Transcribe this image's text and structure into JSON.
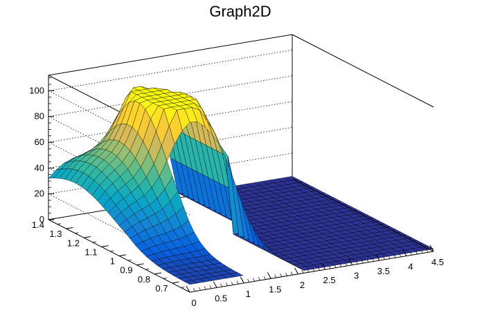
{
  "chart_data": {
    "type": "surface",
    "title": "Graph2D",
    "xlabel": "",
    "ylabel": "",
    "zlabel": "",
    "xlim": [
      0,
      4.5
    ],
    "ylim": [
      0.6,
      1.4
    ],
    "zlim": [
      0,
      112
    ],
    "x_ticks": [
      "0",
      "0.5",
      "1",
      "1.5",
      "2",
      "2.5",
      "3",
      "3.5",
      "4",
      "4.5"
    ],
    "y_ticks": [
      "0.7",
      "0.8",
      "0.9",
      "1",
      "1.1",
      "1.2",
      "1.3",
      "1.4"
    ],
    "z_ticks": [
      "0",
      "20",
      "40",
      "60",
      "80",
      "100"
    ],
    "grid": true,
    "colormap": [
      "#352a87",
      "#0363e1",
      "#1485d4",
      "#06a7c6",
      "#38b99e",
      "#92bf73",
      "#d9ba56",
      "#fcce2e",
      "#f9fb0e"
    ],
    "frame_color": "#000000",
    "background": "#ffffff"
  }
}
